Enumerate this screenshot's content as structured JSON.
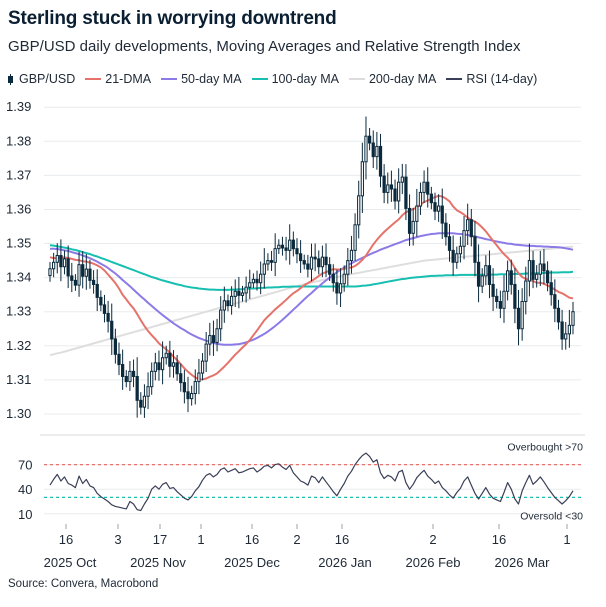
{
  "title": "Sterling stuck in worrying downtrend",
  "subtitle": "GBP/USD daily developments, Moving Averages and Relative Strength Index",
  "source": "Source: Convera, Macrobond",
  "legend": [
    {
      "label": "GBP/USD",
      "kind": "candle",
      "color": "#0b2a3d"
    },
    {
      "label": "21-DMA",
      "kind": "line",
      "color": "#e5736b"
    },
    {
      "label": "50-day MA",
      "kind": "line",
      "color": "#8c7ae6"
    },
    {
      "label": "100-day MA",
      "kind": "line",
      "color": "#16bfb0"
    },
    {
      "label": "200-day MA",
      "kind": "line",
      "color": "#e2e2e2"
    },
    {
      "label": "RSI (14-day)",
      "kind": "line",
      "color": "#3a3f58"
    }
  ],
  "chart_data": [
    {
      "type": "candlestick",
      "title": "Sterling stuck in worrying downtrend",
      "xlabel": "",
      "ylabel": "",
      "ylim": [
        1.295,
        1.393
      ],
      "y_ticks": [
        "1.30",
        "1.31",
        "1.32",
        "1.33",
        "1.34",
        "1.35",
        "1.36",
        "1.37",
        "1.38",
        "1.39"
      ],
      "x_day_ticks": [
        "16",
        "3",
        "17",
        "1",
        "16",
        "2",
        "16",
        "2",
        "16",
        "1"
      ],
      "x_month_labels": [
        "2025 Oct",
        "2025 Nov",
        "2025 Dec",
        "2026 Jan",
        "2026 Feb",
        "2026 Mar"
      ],
      "grid": true,
      "close": [
        1.3426,
        1.3445,
        1.3465,
        1.3432,
        1.3455,
        1.3405,
        1.3392,
        1.3378,
        1.3438,
        1.3404,
        1.3425,
        1.3392,
        1.338,
        1.3342,
        1.332,
        1.3295,
        1.3272,
        1.322,
        1.3175,
        1.3145,
        1.311,
        1.3095,
        1.3125,
        1.311,
        1.304,
        1.302,
        1.3052,
        1.308,
        1.3125,
        1.315,
        1.313,
        1.3165,
        1.3178,
        1.314,
        1.315,
        1.3118,
        1.3092,
        1.3065,
        1.3045,
        1.306,
        1.3095,
        1.312,
        1.3155,
        1.3205,
        1.323,
        1.321,
        1.325,
        1.3305,
        1.3332,
        1.3318,
        1.3345,
        1.336,
        1.3348,
        1.3355,
        1.3372,
        1.3385,
        1.3395,
        1.3385,
        1.341,
        1.344,
        1.345,
        1.3445,
        1.3485,
        1.3495,
        1.3487,
        1.348,
        1.351,
        1.3485,
        1.347,
        1.345,
        1.344,
        1.3425,
        1.346,
        1.3455,
        1.3432,
        1.346,
        1.3438,
        1.341,
        1.3385,
        1.3355,
        1.3382,
        1.341,
        1.345,
        1.348,
        1.3555,
        1.364,
        1.374,
        1.3815,
        1.3795,
        1.3755,
        1.3785,
        1.3698,
        1.365,
        1.3672,
        1.366,
        1.3625,
        1.368,
        1.3695,
        1.3603,
        1.353,
        1.3565,
        1.361,
        1.365,
        1.368,
        1.3645,
        1.362,
        1.3595,
        1.361,
        1.356,
        1.352,
        1.348,
        1.3445,
        1.347,
        1.3492,
        1.3538,
        1.357,
        1.352,
        1.3445,
        1.3375,
        1.3405,
        1.3435,
        1.338,
        1.3345,
        1.333,
        1.331,
        1.336,
        1.342,
        1.338,
        1.331,
        1.325,
        1.333,
        1.339,
        1.345,
        1.3395,
        1.341,
        1.344,
        1.342,
        1.3385,
        1.335,
        1.331,
        1.327,
        1.322,
        1.3235,
        1.326,
        1.33
      ],
      "series": [
        {
          "name": "21-DMA",
          "values": [
            1.346,
            1.3457,
            1.3458,
            1.346,
            1.3459,
            1.3458,
            1.3455,
            1.3452,
            1.3451,
            1.3448,
            1.3447,
            1.3444,
            1.3441,
            1.3436,
            1.343,
            1.3421,
            1.3409,
            1.3397,
            1.3384,
            1.3368,
            1.335,
            1.3336,
            1.3322,
            1.331,
            1.3293,
            1.3275,
            1.3258,
            1.3243,
            1.3231,
            1.322,
            1.3207,
            1.3198,
            1.319,
            1.318,
            1.3168,
            1.3158,
            1.3146,
            1.3134,
            1.3124,
            1.3115,
            1.3107,
            1.3102,
            1.3101,
            1.3104,
            1.3109,
            1.3113,
            1.3119,
            1.3129,
            1.3139,
            1.315,
            1.3162,
            1.3174,
            1.3184,
            1.3195,
            1.3205,
            1.3217,
            1.3231,
            1.3245,
            1.326,
            1.3275,
            1.3286,
            1.3296,
            1.3307,
            1.3316,
            1.3325,
            1.3335,
            1.3345,
            1.3354,
            1.3361,
            1.3369,
            1.3378,
            1.3384,
            1.339,
            1.3397,
            1.3405,
            1.3412,
            1.3416,
            1.3421,
            1.3425,
            1.3424,
            1.3424,
            1.3426,
            1.3428,
            1.343,
            1.3434,
            1.3442,
            1.3452,
            1.3465,
            1.3481,
            1.3497,
            1.3511,
            1.3523,
            1.3534,
            1.3544,
            1.3553,
            1.3562,
            1.3571,
            1.3583,
            1.3592,
            1.3597,
            1.3601,
            1.3606,
            1.3614,
            1.3622,
            1.3626,
            1.3632,
            1.3636,
            1.364,
            1.3638,
            1.3632,
            1.3624,
            1.3609,
            1.3598,
            1.3592,
            1.3585,
            1.3576,
            1.3569,
            1.3565,
            1.3557,
            1.3547,
            1.3536,
            1.3522,
            1.3508,
            1.3495,
            1.3481,
            1.3469,
            1.3459,
            1.3446,
            1.3428,
            1.3413,
            1.3402,
            1.3396,
            1.3394,
            1.339,
            1.3385,
            1.3385,
            1.3382,
            1.3377,
            1.3372,
            1.3365,
            1.3358,
            1.3354,
            1.3348,
            1.3341,
            1.3339
          ]
        },
        {
          "name": "50-day MA",
          "values": [
            1.3485,
            1.3485,
            1.3484,
            1.3482,
            1.348,
            1.3478,
            1.3475,
            1.3472,
            1.3469,
            1.3465,
            1.3461,
            1.3457,
            1.3452,
            1.3447,
            1.3441,
            1.3435,
            1.3428,
            1.342,
            1.3412,
            1.3403,
            1.3393,
            1.3384,
            1.3375,
            1.3365,
            1.3355,
            1.3345,
            1.3336,
            1.3326,
            1.3317,
            1.3308,
            1.3299,
            1.329,
            1.3282,
            1.3274,
            1.3266,
            1.3259,
            1.3252,
            1.3246,
            1.3239,
            1.3233,
            1.3228,
            1.3223,
            1.3219,
            1.3215,
            1.3211,
            1.3208,
            1.3206,
            1.3204,
            1.3203,
            1.3203,
            1.3203,
            1.3204,
            1.3205,
            1.3207,
            1.321,
            1.3214,
            1.3218,
            1.3223,
            1.3229,
            1.3235,
            1.3242,
            1.325,
            1.3258,
            1.3267,
            1.3276,
            1.3286,
            1.3296,
            1.3306,
            1.3316,
            1.3326,
            1.3336,
            1.3346,
            1.3355,
            1.3365,
            1.3374,
            1.3383,
            1.3392,
            1.34,
            1.3408,
            1.3416,
            1.3423,
            1.343,
            1.3436,
            1.3442,
            1.3448,
            1.3453,
            1.3458,
            1.3463,
            1.3468,
            1.3473,
            1.3477,
            1.3482,
            1.3486,
            1.349,
            1.3494,
            1.3498,
            1.3502,
            1.3506,
            1.351,
            1.3513,
            1.3516,
            1.3519,
            1.3522,
            1.3524,
            1.3526,
            1.3528,
            1.3529,
            1.353,
            1.353,
            1.353,
            1.353,
            1.353,
            1.3529,
            1.3528,
            1.3527,
            1.3525,
            1.3523,
            1.3521,
            1.3518,
            1.3516,
            1.3513,
            1.3511,
            1.3508,
            1.3506,
            1.3504,
            1.3502,
            1.35,
            1.3499,
            1.3497,
            1.3496,
            1.3495,
            1.3494,
            1.3493,
            1.3493,
            1.3492,
            1.3492,
            1.3491,
            1.3491,
            1.349,
            1.349,
            1.3489,
            1.3488,
            1.3486,
            1.3484,
            1.3482
          ]
        },
        {
          "name": "100-day MA",
          "values": [
            1.3495,
            1.3494,
            1.3492,
            1.349,
            1.3488,
            1.3486,
            1.3483,
            1.3481,
            1.3478,
            1.3475,
            1.3472,
            1.3469,
            1.3465,
            1.3462,
            1.3458,
            1.3454,
            1.345,
            1.3446,
            1.3442,
            1.3438,
            1.3434,
            1.343,
            1.3426,
            1.3422,
            1.3418,
            1.3414,
            1.341,
            1.3406,
            1.3402,
            1.3399,
            1.3395,
            1.3392,
            1.3389,
            1.3386,
            1.3383,
            1.338,
            1.3378,
            1.3375,
            1.3373,
            1.3371,
            1.337,
            1.3368,
            1.3367,
            1.3366,
            1.3365,
            1.3365,
            1.3364,
            1.3364,
            1.3364,
            1.3364,
            1.3365,
            1.3365,
            1.3366,
            1.3366,
            1.3367,
            1.3368,
            1.3368,
            1.3369,
            1.337,
            1.337,
            1.3371,
            1.3371,
            1.3372,
            1.3372,
            1.3373,
            1.3373,
            1.3373,
            1.3374,
            1.3374,
            1.3374,
            1.3374,
            1.3374,
            1.3374,
            1.3374,
            1.3374,
            1.3374,
            1.3374,
            1.3374,
            1.3374,
            1.3374,
            1.3374,
            1.3374,
            1.3374,
            1.3374,
            1.3374,
            1.3375,
            1.3376,
            1.3377,
            1.3378,
            1.338,
            1.3382,
            1.3384,
            1.3386,
            1.3388,
            1.339,
            1.3392,
            1.3394,
            1.3396,
            1.3397,
            1.3399,
            1.34,
            1.3401,
            1.3402,
            1.3403,
            1.3404,
            1.3405,
            1.3405,
            1.3406,
            1.3406,
            1.3407,
            1.3407,
            1.3407,
            1.3407,
            1.3408,
            1.3408,
            1.3408,
            1.3408,
            1.3408,
            1.3408,
            1.3409,
            1.3409,
            1.3409,
            1.3409,
            1.3409,
            1.341,
            1.341,
            1.341,
            1.341,
            1.3411,
            1.3411,
            1.3411,
            1.3412,
            1.3412,
            1.3412,
            1.3413,
            1.3413,
            1.3414,
            1.3414,
            1.3415,
            1.3415,
            1.3415,
            1.3416,
            1.3416,
            1.3416,
            1.3417
          ]
        },
        {
          "name": "200-day MA",
          "values": [
            1.3172,
            1.3175,
            1.3178,
            1.318,
            1.3183,
            1.3186,
            1.3189,
            1.3192,
            1.3195,
            1.3198,
            1.3201,
            1.3204,
            1.3207,
            1.321,
            1.3213,
            1.3216,
            1.3219,
            1.3222,
            1.3225,
            1.3228,
            1.3231,
            1.3234,
            1.3237,
            1.324,
            1.3243,
            1.3246,
            1.3249,
            1.3252,
            1.3255,
            1.3258,
            1.3261,
            1.3264,
            1.3267,
            1.327,
            1.3273,
            1.3276,
            1.3279,
            1.3282,
            1.3285,
            1.3288,
            1.3291,
            1.3294,
            1.3297,
            1.33,
            1.3303,
            1.3306,
            1.3309,
            1.3312,
            1.3315,
            1.3318,
            1.3321,
            1.3324,
            1.3327,
            1.333,
            1.3333,
            1.3336,
            1.3339,
            1.3342,
            1.3345,
            1.3348,
            1.3351,
            1.3354,
            1.3357,
            1.336,
            1.3363,
            1.3366,
            1.3369,
            1.3372,
            1.3375,
            1.3378,
            1.338,
            1.3383,
            1.3385,
            1.3388,
            1.339,
            1.3393,
            1.3395,
            1.3398,
            1.34,
            1.3402,
            1.3404,
            1.3406,
            1.3408,
            1.341,
            1.3412,
            1.3414,
            1.3416,
            1.3418,
            1.342,
            1.3422,
            1.3424,
            1.3426,
            1.3428,
            1.343,
            1.3432,
            1.3434,
            1.3436,
            1.3438,
            1.344,
            1.3442,
            1.3444,
            1.3446,
            1.3448,
            1.345,
            1.3451,
            1.3452,
            1.3453,
            1.3454,
            1.3455,
            1.3456,
            1.3457,
            1.3458,
            1.3459,
            1.346,
            1.3461,
            1.3462,
            1.3463,
            1.3464,
            1.3465,
            1.3466,
            1.3467,
            1.3468,
            1.3469,
            1.347,
            1.3471,
            1.3472,
            1.3473,
            1.3474,
            1.3475,
            1.3476,
            1.3477,
            1.3478,
            1.3479,
            1.348,
            1.3481,
            1.3482,
            1.3483,
            1.3484,
            1.3485,
            1.3486,
            1.3487,
            1.3488,
            1.3489,
            1.349,
            1.3491
          ]
        }
      ]
    },
    {
      "type": "line",
      "title": "",
      "xlabel": "",
      "ylabel": "",
      "ylim": [
        0,
        100
      ],
      "y_ticks": [
        "10",
        "40",
        "70"
      ],
      "grid": true,
      "reference_lines": [
        {
          "value": 70,
          "label": "Overbought >70",
          "color": "#e5736b"
        },
        {
          "value": 30,
          "label": "Oversold <30",
          "color": "#16bfb0"
        }
      ],
      "series": [
        {
          "name": "RSI (14-day)",
          "values": [
            45,
            52,
            58,
            50,
            55,
            47,
            45,
            42,
            56,
            47,
            52,
            44,
            42,
            35,
            31,
            28,
            25,
            21,
            19,
            18,
            17,
            16,
            25,
            22,
            15,
            14,
            22,
            29,
            40,
            44,
            40,
            46,
            48,
            41,
            42,
            37,
            33,
            29,
            27,
            31,
            38,
            43,
            51,
            57,
            59,
            55,
            58,
            64,
            66,
            61,
            63,
            65,
            60,
            61,
            63,
            65,
            66,
            61,
            64,
            68,
            69,
            66,
            70,
            71,
            67,
            64,
            69,
            60,
            55,
            50,
            48,
            45,
            56,
            54,
            48,
            55,
            49,
            43,
            37,
            32,
            40,
            47,
            56,
            62,
            70,
            76,
            81,
            84,
            80,
            73,
            76,
            60,
            53,
            57,
            55,
            50,
            61,
            63,
            48,
            40,
            46,
            54,
            59,
            63,
            56,
            52,
            47,
            50,
            42,
            38,
            33,
            29,
            36,
            41,
            50,
            55,
            45,
            35,
            28,
            35,
            42,
            34,
            29,
            27,
            25,
            36,
            48,
            40,
            28,
            22,
            38,
            48,
            57,
            46,
            50,
            55,
            49,
            42,
            36,
            30,
            26,
            22,
            26,
            31,
            38
          ]
        }
      ]
    }
  ]
}
